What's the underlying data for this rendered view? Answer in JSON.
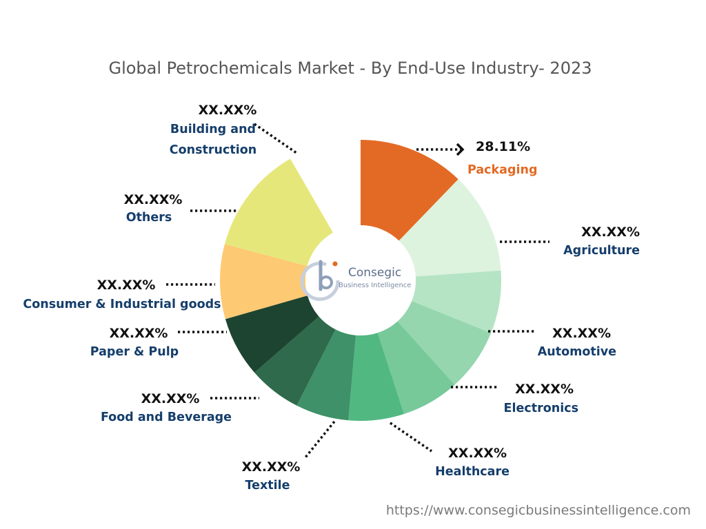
{
  "chart_data": {
    "type": "pie",
    "title": "Global Petrochemicals Market - By End-Use Industry- 2023",
    "donut": true,
    "categories": [
      "Packaging",
      "Agriculture",
      "Automotive",
      "Electronics",
      "Healthcare",
      "Textile",
      "Food and Beverage",
      "Paper & Pulp",
      "Consumer & Industrial goods",
      "Others",
      "Building and Construction"
    ],
    "value_labels": [
      "28.11%",
      "XX.XX%",
      "XX.XX%",
      "XX.XX%",
      "XX.XX%",
      "XX.XX%",
      "XX.XX%",
      "XX.XX%",
      "XX.XX%",
      "XX.XX%",
      "XX.XX%"
    ],
    "colors": [
      "#E36A25",
      "#DDF3DE",
      "#B5E4C4",
      "#95D6AF",
      "#77C99A",
      "#52B882",
      "#3E9168",
      "#2E6A4B",
      "#1D4430",
      "#FDC973",
      "#E6E77A"
    ],
    "label_colors": {
      "highlight": "#E36A25",
      "default": "#153E6B"
    }
  },
  "logo": {
    "name": "Consegic",
    "tagline": "Business Intelligence"
  },
  "source_url": "https://www.consegicbusinessintelligence.com"
}
